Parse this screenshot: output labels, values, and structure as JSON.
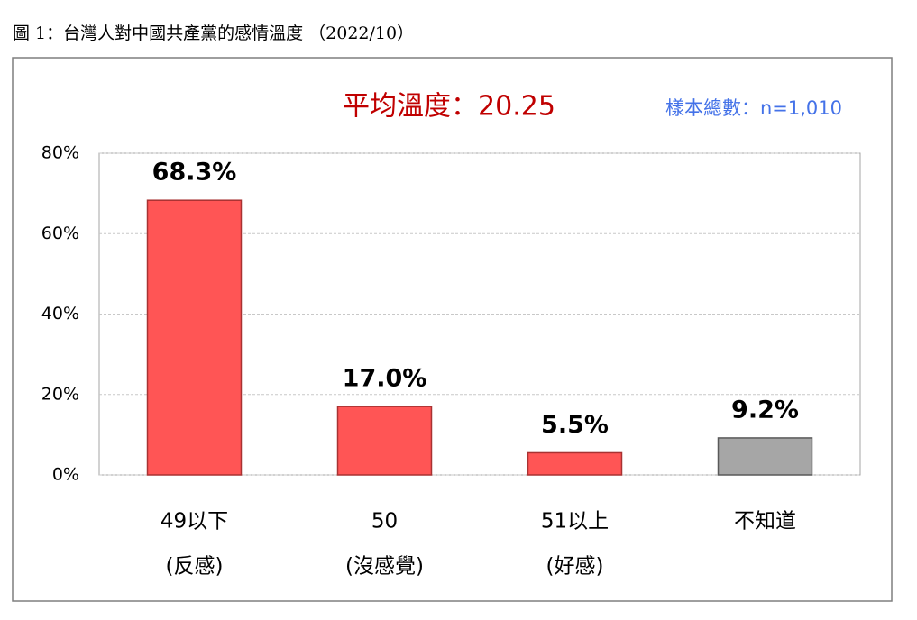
{
  "chart_data": {
    "type": "bar",
    "title": "圖 1：台灣人對中國共產黨的感情溫度 （2022/10）",
    "annotations": [
      "平均溫度：20.25",
      "樣本總數：n=1,010"
    ],
    "categories": [
      [
        "49以下",
        "(反感)"
      ],
      [
        "50",
        "(沒感覺)"
      ],
      [
        "51以上",
        "(好感)"
      ],
      [
        "不知道"
      ]
    ],
    "values": [
      68.3,
      17.0,
      5.5,
      9.2
    ],
    "value_labels": [
      "68.3%",
      "17.0%",
      "5.5%",
      "9.2%"
    ],
    "colors": [
      "#ff5555",
      "#ff5555",
      "#ff5555",
      "#a6a6a6"
    ],
    "ylim": [
      0,
      80
    ],
    "yticks": [
      {
        "value": 0,
        "label": "0%"
      },
      {
        "value": 20,
        "label": "20%"
      },
      {
        "value": 40,
        "label": "40%"
      },
      {
        "value": 60,
        "label": "60%"
      },
      {
        "value": 80,
        "label": "80%"
      }
    ],
    "grid": true
  }
}
